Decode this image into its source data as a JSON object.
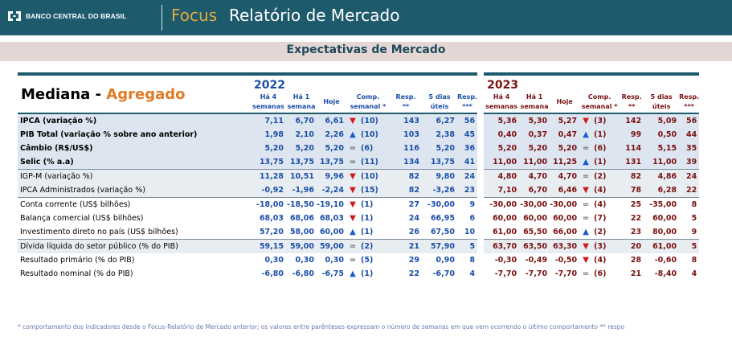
{
  "header": {
    "bank_name": "BANCO CENTRAL DO BRASIL",
    "brand": "Focus",
    "title": "Relatório de Mercado"
  },
  "subtitle": "Expectativas de Mercado",
  "table": {
    "title_a": "Mediana - ",
    "title_b": "Agregado",
    "years": [
      "2022",
      "2023"
    ],
    "subheaders": {
      "ha4": [
        "Há 4",
        "semanas"
      ],
      "ha1": [
        "Há 1",
        "semana"
      ],
      "hoje": "Hoje",
      "comp": [
        "Comp.",
        "semanal *"
      ],
      "resp": [
        "Resp.",
        "**"
      ],
      "dias": [
        "5 dias",
        "úteis"
      ],
      "resp3": [
        "Resp.",
        "***"
      ]
    },
    "rows": [
      {
        "label": "IPCA (variação %)",
        "bold": true,
        "y1": [
          "7,11",
          "6,70",
          "6,61",
          "down",
          "(10)",
          "143",
          "6,27",
          "56"
        ],
        "y2": [
          "5,36",
          "5,30",
          "5,27",
          "down",
          "(3)",
          "142",
          "5,09",
          "56"
        ]
      },
      {
        "label": "PIB Total (variação % sobre ano anterior)",
        "bold": true,
        "y1": [
          "1,98",
          "2,10",
          "2,26",
          "up",
          "(10)",
          "103",
          "2,38",
          "45"
        ],
        "y2": [
          "0,40",
          "0,37",
          "0,47",
          "up",
          "(1)",
          "99",
          "0,50",
          "44"
        ]
      },
      {
        "label": "Câmbio (R$/US$)",
        "bold": true,
        "y1": [
          "5,20",
          "5,20",
          "5,20",
          "eq",
          "(6)",
          "116",
          "5,20",
          "36"
        ],
        "y2": [
          "5,20",
          "5,20",
          "5,20",
          "eq",
          "(6)",
          "114",
          "5,15",
          "35"
        ]
      },
      {
        "label": "Selic (% a.a)",
        "bold": true,
        "y1": [
          "13,75",
          "13,75",
          "13,75",
          "eq",
          "(11)",
          "134",
          "13,75",
          "41"
        ],
        "y2": [
          "11,00",
          "11,00",
          "11,25",
          "up",
          "(1)",
          "131",
          "11,00",
          "39"
        ]
      },
      {
        "label": "IGP-M (variação %)",
        "bold": false,
        "y1": [
          "11,28",
          "10,51",
          "9,96",
          "down",
          "(10)",
          "82",
          "9,80",
          "24"
        ],
        "y2": [
          "4,80",
          "4,70",
          "4,70",
          "eq",
          "(2)",
          "82",
          "4,86",
          "24"
        ]
      },
      {
        "label": "IPCA Administrados (variação %)",
        "bold": false,
        "y1": [
          "-0,92",
          "-1,96",
          "-2,24",
          "down",
          "(15)",
          "82",
          "-3,26",
          "23"
        ],
        "y2": [
          "7,10",
          "6,70",
          "6,46",
          "down",
          "(4)",
          "78",
          "6,28",
          "22"
        ]
      },
      {
        "label": "Conta corrente (US$ bilhões)",
        "bold": false,
        "y1": [
          "-18,00",
          "-18,50",
          "-19,10",
          "down",
          "(1)",
          "27",
          "-30,00",
          "9"
        ],
        "y2": [
          "-30,00",
          "-30,00",
          "-30,00",
          "eq",
          "(4)",
          "25",
          "-35,00",
          "8"
        ]
      },
      {
        "label": "Balança comercial (US$ bilhões)",
        "bold": false,
        "y1": [
          "68,03",
          "68,06",
          "68,03",
          "down",
          "(1)",
          "24",
          "66,95",
          "6"
        ],
        "y2": [
          "60,00",
          "60,00",
          "60,00",
          "eq",
          "(7)",
          "22",
          "60,00",
          "5"
        ]
      },
      {
        "label": "Investimento direto no país (US$ bilhões)",
        "bold": false,
        "y1": [
          "57,20",
          "58,00",
          "60,00",
          "up",
          "(1)",
          "26",
          "67,50",
          "10"
        ],
        "y2": [
          "61,00",
          "65,50",
          "66,00",
          "up",
          "(2)",
          "23",
          "80,00",
          "9"
        ]
      },
      {
        "label": "Dívida líquida do setor público (% do PIB)",
        "bold": false,
        "y1": [
          "59,15",
          "59,00",
          "59,00",
          "eq",
          "(2)",
          "21",
          "57,90",
          "5"
        ],
        "y2": [
          "63,70",
          "63,50",
          "63,30",
          "down",
          "(3)",
          "20",
          "61,00",
          "5"
        ]
      },
      {
        "label": "Resultado primário (% do PIB)",
        "bold": false,
        "y1": [
          "0,30",
          "0,30",
          "0,30",
          "eq",
          "(5)",
          "29",
          "0,90",
          "8"
        ],
        "y2": [
          "-0,30",
          "-0,49",
          "-0,50",
          "down",
          "(4)",
          "28",
          "-0,60",
          "8"
        ]
      },
      {
        "label": "Resultado nominal (% do PIB)",
        "bold": false,
        "y1": [
          "-6,80",
          "-6,80",
          "-6,75",
          "up",
          "(1)",
          "22",
          "-6,70",
          "4"
        ],
        "y2": [
          "-7,70",
          "-7,70",
          "-7,70",
          "eq",
          "(6)",
          "21",
          "-8,40",
          "4"
        ]
      }
    ]
  },
  "footnote": "* comportamento dos indicadores desde o Focus-Relatório de Mercado anterior; os valores entre parênteses expressam o número de semanas em que vem ocorrendo o último comportamento ** respo",
  "colors": {
    "header_bg": "#1d5a6b",
    "brand": "#e2a93d",
    "year_2022": "#1b4fa8",
    "year_2023": "#7a1010",
    "down": "#d11a1a",
    "up": "#1b5bd1"
  }
}
